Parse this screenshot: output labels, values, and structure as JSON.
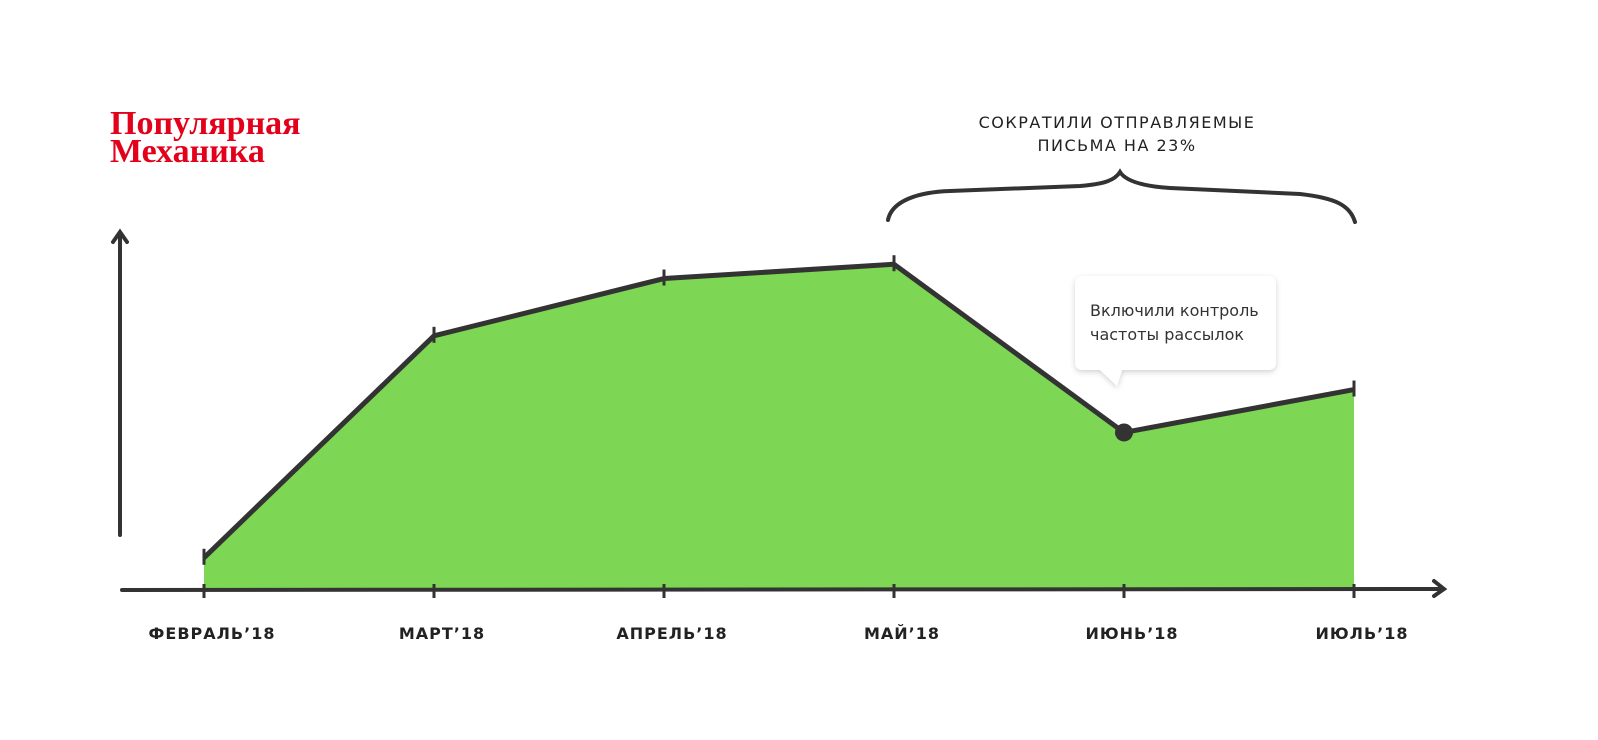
{
  "logo": {
    "lines": [
      "Популярная",
      "Механика"
    ]
  },
  "chart_data": {
    "type": "area",
    "categories": [
      "ФЕВРАЛЬ’18",
      "МАРТ’18",
      "АПРЕЛЬ’18",
      "МАЙ’18",
      "ИЮНЬ’18",
      "ИЮЛЬ’18"
    ],
    "series": [
      {
        "color": "#7dd654",
        "values": [
          9,
          71,
          87,
          91,
          44,
          56
        ]
      }
    ],
    "ylim": [
      0,
      100
    ],
    "annotations": [
      {
        "lines": [
          "СОКРАТИЛИ ОТПРАВЛЯЕМЫЕ",
          "ПИСЬМА НА 23%"
        ]
      },
      {
        "lines": [
          "Включили контроль",
          "частоты рассылок"
        ]
      }
    ]
  }
}
